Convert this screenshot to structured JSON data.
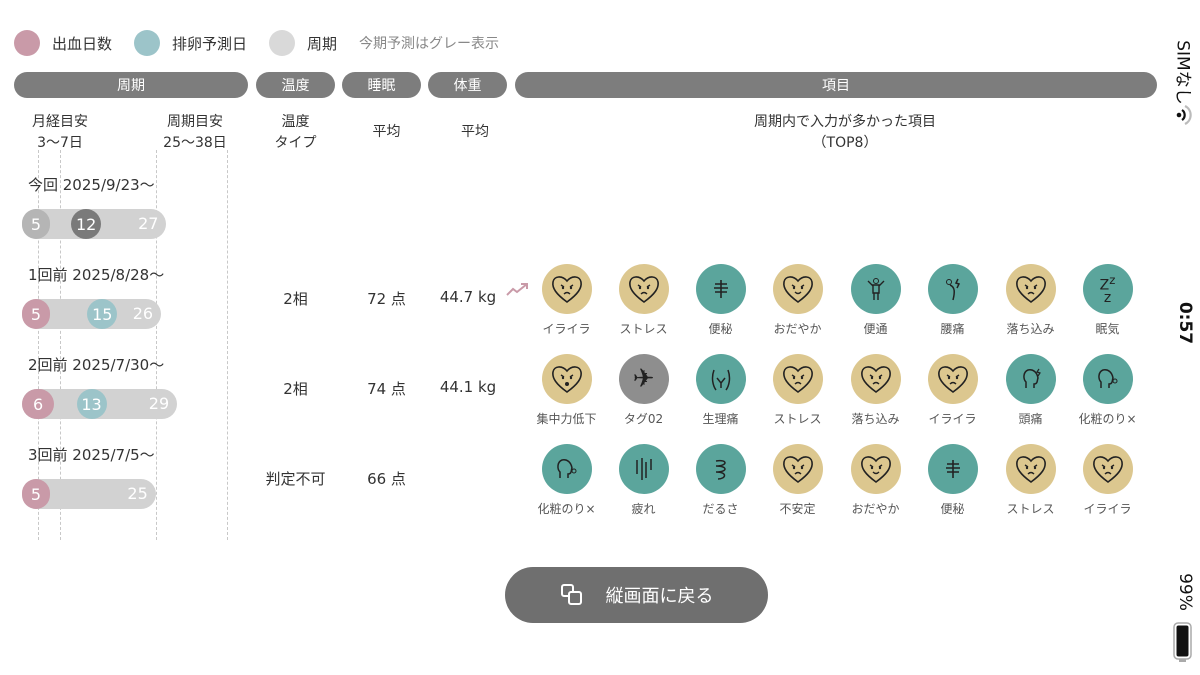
{
  "legend": {
    "items": [
      {
        "label": "出血日数",
        "color": "#c99aa8"
      },
      {
        "label": "排卵予測日",
        "color": "#9cc4c9"
      },
      {
        "label": "周期",
        "color": "#d9d9d9"
      }
    ],
    "note": "今期予測はグレー表示"
  },
  "headers": {
    "cycle": "周期",
    "temp": "温度",
    "sleep": "睡眠",
    "weight": "体重",
    "items": "項目"
  },
  "subheaders": {
    "period_guide": "月経目安",
    "period_range": "3〜7日",
    "cycle_guide": "周期目安",
    "cycle_range": "25〜38日",
    "temp_l1": "温度",
    "temp_l2": "タイプ",
    "sleep": "平均",
    "weight": "平均",
    "items_l1": "周期内で入力が多かった項目",
    "items_l2": "（TOP8）"
  },
  "cycles": [
    {
      "label": "今回 2025/9/23〜",
      "period": 5,
      "ovulation": 12,
      "length": 27,
      "predicted": true,
      "temp": "",
      "sleep": "",
      "weight": "",
      "trend": ""
    },
    {
      "label": "1回前 2025/8/28〜",
      "period": 5,
      "ovulation": 15,
      "length": 26,
      "predicted": false,
      "temp": "2相",
      "sleep": "72 点",
      "weight": "44.7 kg",
      "trend": "up"
    },
    {
      "label": "2回前 2025/7/30〜",
      "period": 6,
      "ovulation": 13,
      "length": 29,
      "predicted": false,
      "temp": "2相",
      "sleep": "74 点",
      "weight": "44.1 kg",
      "trend": ""
    },
    {
      "label": "3回前 2025/7/5〜",
      "period": 5,
      "ovulation": null,
      "length": 25,
      "predicted": false,
      "temp": "判定不可",
      "sleep": "66 点",
      "weight": "",
      "trend": ""
    }
  ],
  "tag_rows": [
    [
      {
        "label": "イライラ",
        "kind": "mood",
        "icon": "angry-heart-icon"
      },
      {
        "label": "ストレス",
        "kind": "mood",
        "icon": "stressed-heart-icon"
      },
      {
        "label": "便秘",
        "kind": "body",
        "icon": "constipation-icon"
      },
      {
        "label": "おだやか",
        "kind": "mood",
        "icon": "calm-heart-icon"
      },
      {
        "label": "便通",
        "kind": "body",
        "icon": "bowel-icon"
      },
      {
        "label": "腰痛",
        "kind": "body",
        "icon": "back-pain-icon"
      },
      {
        "label": "落ち込み",
        "kind": "mood",
        "icon": "depressed-heart-icon"
      },
      {
        "label": "眠気",
        "kind": "body",
        "icon": "sleepy-icon"
      }
    ],
    [
      {
        "label": "集中力低下",
        "kind": "mood",
        "icon": "dizzy-heart-icon"
      },
      {
        "label": "タグ02",
        "kind": "other",
        "icon": "airplane-icon"
      },
      {
        "label": "生理痛",
        "kind": "body",
        "icon": "cramps-icon"
      },
      {
        "label": "ストレス",
        "kind": "mood",
        "icon": "stressed-heart-icon"
      },
      {
        "label": "落ち込み",
        "kind": "mood",
        "icon": "depressed-heart-icon"
      },
      {
        "label": "イライラ",
        "kind": "mood",
        "icon": "angry-heart-icon"
      },
      {
        "label": "頭痛",
        "kind": "body",
        "icon": "headache-icon"
      },
      {
        "label": "化粧のり×",
        "kind": "body",
        "icon": "skin-icon"
      }
    ],
    [
      {
        "label": "化粧のり×",
        "kind": "body",
        "icon": "skin-icon"
      },
      {
        "label": "疲れ",
        "kind": "body",
        "icon": "tired-icon"
      },
      {
        "label": "だるさ",
        "kind": "body",
        "icon": "sluggish-icon"
      },
      {
        "label": "不安定",
        "kind": "mood",
        "icon": "unstable-heart-icon"
      },
      {
        "label": "おだやか",
        "kind": "mood",
        "icon": "calm-heart-icon"
      },
      {
        "label": "便秘",
        "kind": "body",
        "icon": "constipation-icon"
      },
      {
        "label": "ストレス",
        "kind": "mood",
        "icon": "stressed-heart-icon"
      },
      {
        "label": "イライラ",
        "kind": "mood",
        "icon": "angry-heart-icon"
      }
    ]
  ],
  "colors": {
    "mood": "#dcc78f",
    "body": "#5ba59c",
    "other": "#8e8e8e",
    "period": "#c99aa8",
    "ovulation": "#9cc4c9",
    "predicted_ovulation": "#7a7a7a",
    "bar": "#d2d2d2",
    "trend": "#c99aa8"
  },
  "button": {
    "label": "縦画面に戻る",
    "icon": "rotate-screen-icon"
  },
  "status": {
    "carrier": "SIMなし",
    "time": "0:57",
    "battery": "99%"
  }
}
